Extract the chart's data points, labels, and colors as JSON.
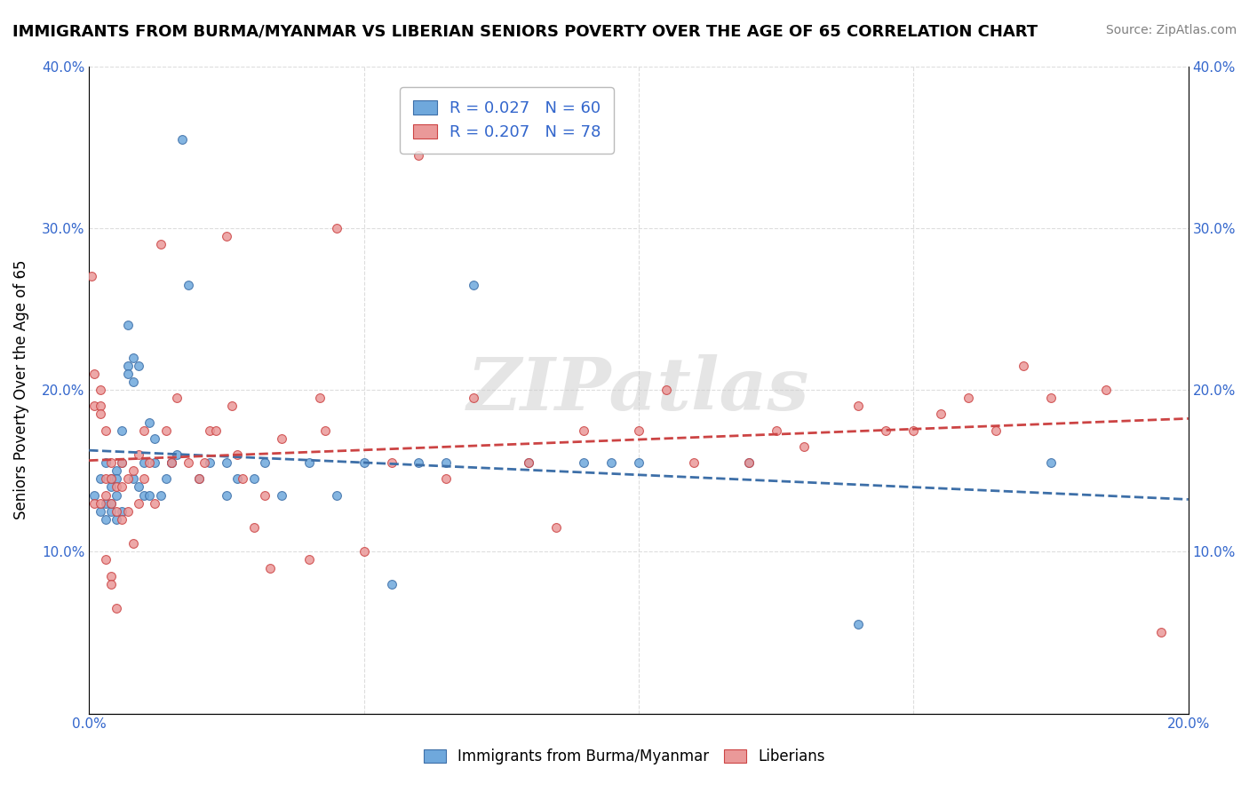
{
  "title": "IMMIGRANTS FROM BURMA/MYANMAR VS LIBERIAN SENIORS POVERTY OVER THE AGE OF 65 CORRELATION CHART",
  "source": "Source: ZipAtlas.com",
  "xlabel_bottom": "",
  "ylabel": "Seniors Poverty Over the Age of 65",
  "xlim": [
    0.0,
    0.2
  ],
  "ylim": [
    0.0,
    0.4
  ],
  "xticks": [
    0.0,
    0.05,
    0.1,
    0.15,
    0.2
  ],
  "xtick_labels": [
    "0.0%",
    "",
    "",
    "",
    "20.0%"
  ],
  "yticks": [
    0.0,
    0.1,
    0.2,
    0.3,
    0.4
  ],
  "ytick_labels": [
    "",
    "10.0%",
    "20.0%",
    "30.0%",
    "40.0%"
  ],
  "blue_r": 0.027,
  "blue_n": 60,
  "pink_r": 0.207,
  "pink_n": 78,
  "blue_color": "#6fa8dc",
  "pink_color": "#ea9999",
  "blue_line_color": "#3d6fa8",
  "pink_line_color": "#cc4444",
  "watermark": "ZIPatlas",
  "watermark_color": "#cccccc",
  "legend_label_blue": "Immigrants from Burma/Myanmar",
  "legend_label_pink": "Liberians",
  "background_color": "#ffffff",
  "grid_color": "#dddddd",
  "blue_scatter_x": [
    0.001,
    0.002,
    0.002,
    0.003,
    0.003,
    0.003,
    0.004,
    0.004,
    0.004,
    0.004,
    0.005,
    0.005,
    0.005,
    0.005,
    0.006,
    0.006,
    0.006,
    0.007,
    0.007,
    0.007,
    0.008,
    0.008,
    0.008,
    0.009,
    0.009,
    0.01,
    0.01,
    0.011,
    0.011,
    0.012,
    0.012,
    0.013,
    0.014,
    0.015,
    0.015,
    0.016,
    0.017,
    0.018,
    0.02,
    0.022,
    0.025,
    0.025,
    0.027,
    0.03,
    0.032,
    0.035,
    0.04,
    0.045,
    0.05,
    0.055,
    0.06,
    0.065,
    0.07,
    0.08,
    0.09,
    0.095,
    0.1,
    0.12,
    0.14,
    0.175
  ],
  "blue_scatter_y": [
    0.135,
    0.145,
    0.125,
    0.13,
    0.12,
    0.155,
    0.13,
    0.145,
    0.125,
    0.14,
    0.135,
    0.15,
    0.12,
    0.145,
    0.125,
    0.155,
    0.175,
    0.215,
    0.21,
    0.24,
    0.145,
    0.205,
    0.22,
    0.14,
    0.215,
    0.135,
    0.155,
    0.18,
    0.135,
    0.155,
    0.17,
    0.135,
    0.145,
    0.155,
    0.155,
    0.16,
    0.355,
    0.265,
    0.145,
    0.155,
    0.155,
    0.135,
    0.145,
    0.145,
    0.155,
    0.135,
    0.155,
    0.135,
    0.155,
    0.08,
    0.155,
    0.155,
    0.265,
    0.155,
    0.155,
    0.155,
    0.155,
    0.155,
    0.055,
    0.155
  ],
  "pink_scatter_x": [
    0.0005,
    0.001,
    0.001,
    0.001,
    0.002,
    0.002,
    0.002,
    0.002,
    0.003,
    0.003,
    0.003,
    0.003,
    0.004,
    0.004,
    0.004,
    0.004,
    0.004,
    0.005,
    0.005,
    0.005,
    0.006,
    0.006,
    0.006,
    0.007,
    0.007,
    0.008,
    0.008,
    0.009,
    0.009,
    0.01,
    0.01,
    0.011,
    0.012,
    0.013,
    0.014,
    0.015,
    0.016,
    0.018,
    0.02,
    0.021,
    0.022,
    0.023,
    0.025,
    0.026,
    0.027,
    0.028,
    0.03,
    0.032,
    0.033,
    0.035,
    0.04,
    0.042,
    0.043,
    0.045,
    0.05,
    0.055,
    0.06,
    0.065,
    0.07,
    0.08,
    0.085,
    0.09,
    0.1,
    0.105,
    0.11,
    0.12,
    0.125,
    0.13,
    0.14,
    0.145,
    0.15,
    0.155,
    0.16,
    0.165,
    0.17,
    0.175,
    0.185,
    0.195
  ],
  "pink_scatter_y": [
    0.27,
    0.21,
    0.19,
    0.13,
    0.2,
    0.19,
    0.185,
    0.13,
    0.175,
    0.145,
    0.135,
    0.095,
    0.145,
    0.155,
    0.13,
    0.085,
    0.08,
    0.14,
    0.125,
    0.065,
    0.155,
    0.14,
    0.12,
    0.125,
    0.145,
    0.15,
    0.105,
    0.16,
    0.13,
    0.175,
    0.145,
    0.155,
    0.13,
    0.29,
    0.175,
    0.155,
    0.195,
    0.155,
    0.145,
    0.155,
    0.175,
    0.175,
    0.295,
    0.19,
    0.16,
    0.145,
    0.115,
    0.135,
    0.09,
    0.17,
    0.095,
    0.195,
    0.175,
    0.3,
    0.1,
    0.155,
    0.345,
    0.145,
    0.195,
    0.155,
    0.115,
    0.175,
    0.175,
    0.2,
    0.155,
    0.155,
    0.175,
    0.165,
    0.19,
    0.175,
    0.175,
    0.185,
    0.195,
    0.175,
    0.215,
    0.195,
    0.2,
    0.05
  ]
}
